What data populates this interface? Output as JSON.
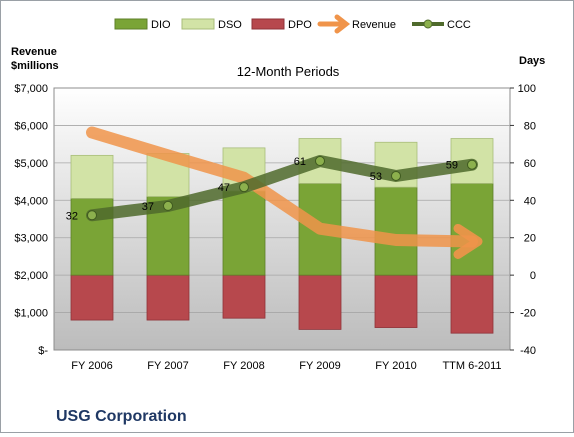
{
  "chart_data": {
    "type": "bar",
    "title": "12-Month Periods",
    "footer": "USG Corporation",
    "left_axis_label_line1": "Revenue",
    "left_axis_label_line2": "$millions",
    "right_axis_label": "Days",
    "categories": [
      "FY 2006",
      "FY 2007",
      "FY 2008",
      "FY 2009",
      "FY 2010",
      "TTM 6-2011"
    ],
    "legend": [
      {
        "name": "DIO",
        "marker": "box",
        "color": "#7aa436"
      },
      {
        "name": "DSO",
        "marker": "box",
        "color": "#d2e3a6"
      },
      {
        "name": "DPO",
        "marker": "box",
        "color": "#b7484d"
      },
      {
        "name": "Revenue",
        "marker": "arrow",
        "color": "#f0944a"
      },
      {
        "name": "CCC",
        "marker": "line-dot",
        "color": "#4f6a2c"
      }
    ],
    "left_axis": {
      "min": 0,
      "max": 7000,
      "ticks": [
        "$-",
        "$1,000",
        "$2,000",
        "$3,000",
        "$4,000",
        "$5,000",
        "$6,000",
        "$7,000"
      ]
    },
    "right_axis": {
      "min": -40,
      "max": 100,
      "ticks": [
        "-40",
        "-20",
        "0",
        "20",
        "40",
        "60",
        "80",
        "100"
      ]
    },
    "days_series": {
      "DIO": [
        41,
        42,
        45,
        49,
        47,
        49
      ],
      "DSO": [
        23,
        23,
        23,
        24,
        24,
        24
      ],
      "DPO": [
        -24,
        -24,
        -23,
        -29,
        -28,
        -31
      ],
      "CCC": [
        32,
        37,
        47,
        61,
        53,
        59
      ]
    },
    "ccc_labels": [
      "32",
      "37",
      "47",
      "61",
      "53",
      "59"
    ],
    "revenue": [
      5810,
      5200,
      4600,
      3240,
      2940,
      2900
    ],
    "colors": {
      "DIO": "#7aa436",
      "DSO": "#d2e3a6",
      "DPO": "#b7484d",
      "Revenue": "#f0944a",
      "CCC": "#4f6a2c"
    }
  }
}
